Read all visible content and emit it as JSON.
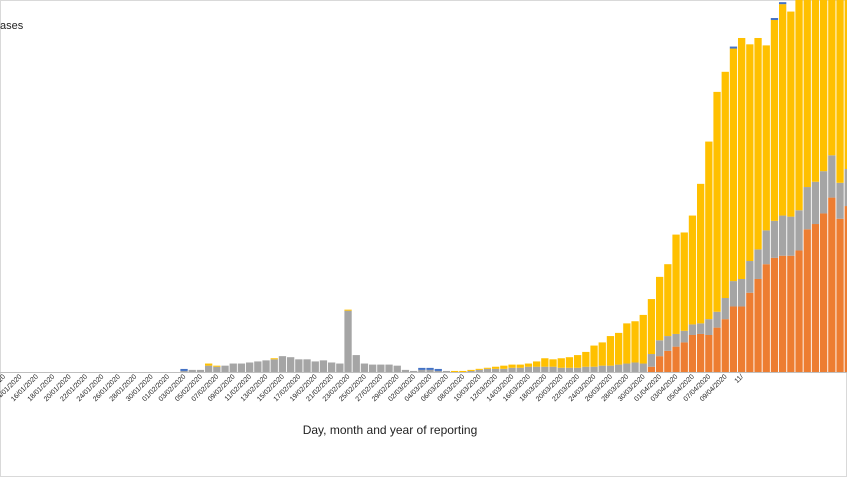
{
  "chart_data": {
    "type": "bar",
    "stacked": true,
    "ylabel": "ases",
    "xlabel": "Day, month and year of reporting",
    "colors": {
      "bottom": "#ED7D31",
      "middle": "#A5A5A5",
      "top": "#FFC000",
      "cap": "#4472C4"
    },
    "tick_labels": [
      "/2020",
      "14/01/2020",
      "16/01/2020",
      "18/01/2020",
      "20/01/2020",
      "22/01/2020",
      "24/01/2020",
      "26/01/2020",
      "28/01/2020",
      "30/01/2020",
      "01/02/2020",
      "03/02/2020",
      "05/02/2020",
      "07/02/2020",
      "09/02/2020",
      "11/02/2020",
      "13/02/2020",
      "15/02/2020",
      "17/02/2020",
      "19/02/2020",
      "21/02/2020",
      "23/02/2020",
      "25/02/2020",
      "27/02/2020",
      "29/02/2020",
      "02/03/2020",
      "04/03/2020",
      "06/03/2020",
      "08/03/2020",
      "10/03/2020",
      "12/03/2020",
      "14/03/2020",
      "16/03/2020",
      "18/03/2020",
      "20/03/2020",
      "22/03/2020",
      "24/03/2020",
      "26/03/2020",
      "28/03/2020",
      "30/03/2020",
      "01/04/2020",
      "03/04/2020",
      "05/04/2020",
      "07/04/2020",
      "09/04/2020",
      "11/"
    ],
    "stack_values": [
      [
        0,
        0,
        0,
        0
      ],
      [
        0,
        0,
        0,
        0
      ],
      [
        0,
        0,
        0,
        0
      ],
      [
        0,
        0,
        0,
        0
      ],
      [
        0,
        0,
        0,
        0
      ],
      [
        0,
        0,
        0,
        0
      ],
      [
        0,
        0,
        0,
        0
      ],
      [
        0,
        0,
        0,
        0
      ],
      [
        0,
        0,
        0,
        0
      ],
      [
        0,
        0,
        0,
        0
      ],
      [
        0,
        0,
        0,
        0
      ],
      [
        0,
        0,
        0,
        0
      ],
      [
        0,
        0,
        0,
        0
      ],
      [
        0,
        0,
        0,
        0
      ],
      [
        0,
        0,
        0,
        0
      ],
      [
        0,
        0,
        0,
        0
      ],
      [
        0,
        0,
        0,
        0
      ],
      [
        0,
        0,
        0,
        0
      ],
      [
        0,
        0,
        0,
        0
      ],
      [
        0,
        0,
        0,
        0
      ],
      [
        0,
        0,
        0,
        0
      ],
      [
        0,
        0,
        0,
        0
      ],
      [
        0,
        1,
        0,
        0.5
      ],
      [
        0,
        2,
        0,
        0
      ],
      [
        0,
        2,
        0,
        0
      ],
      [
        0,
        6,
        2,
        0
      ],
      [
        0,
        5,
        1,
        0
      ],
      [
        0,
        6,
        0,
        0
      ],
      [
        0,
        8,
        0,
        0
      ],
      [
        0,
        8,
        0,
        0
      ],
      [
        0,
        9,
        0,
        0
      ],
      [
        0,
        10,
        0,
        0
      ],
      [
        0,
        11,
        0,
        0
      ],
      [
        0,
        12,
        1,
        0
      ],
      [
        0,
        15,
        0,
        0
      ],
      [
        0,
        14,
        0,
        0
      ],
      [
        0,
        12,
        0,
        0
      ],
      [
        0,
        12,
        0,
        0
      ],
      [
        0,
        10,
        0,
        0
      ],
      [
        0,
        11,
        0,
        0
      ],
      [
        0,
        9,
        0,
        0
      ],
      [
        0,
        8,
        0,
        0
      ],
      [
        0,
        58,
        1,
        0
      ],
      [
        0,
        16,
        0,
        0
      ],
      [
        0,
        8,
        0,
        0
      ],
      [
        0,
        7,
        0,
        0
      ],
      [
        0,
        7,
        0,
        0
      ],
      [
        0,
        7,
        0,
        0
      ],
      [
        0,
        6,
        0,
        0
      ],
      [
        0,
        2,
        0,
        0
      ],
      [
        0,
        1,
        0,
        0
      ],
      [
        0,
        2,
        0,
        0.5
      ],
      [
        0,
        2,
        0,
        0.5
      ],
      [
        0,
        1,
        0,
        0.5
      ],
      [
        0,
        1,
        0,
        0
      ],
      [
        0,
        0,
        1,
        0
      ],
      [
        0,
        0,
        1,
        0
      ],
      [
        0,
        1,
        1,
        0
      ],
      [
        0,
        2,
        1,
        0
      ],
      [
        0,
        3,
        1,
        0
      ],
      [
        0,
        3,
        2,
        0
      ],
      [
        0,
        3,
        3,
        0
      ],
      [
        0,
        4,
        3,
        0
      ],
      [
        0,
        4,
        3,
        0
      ],
      [
        0,
        5,
        3,
        0
      ],
      [
        0,
        5,
        5,
        0
      ],
      [
        0,
        5,
        8,
        0
      ],
      [
        0,
        5,
        7,
        0
      ],
      [
        0,
        4,
        9,
        0
      ],
      [
        0,
        4,
        10,
        0
      ],
      [
        0,
        4,
        12,
        0
      ],
      [
        0,
        5,
        14,
        0
      ],
      [
        0,
        5,
        20,
        0
      ],
      [
        0,
        6,
        22,
        0
      ],
      [
        0,
        6,
        28,
        0
      ],
      [
        0,
        7,
        30,
        0
      ],
      [
        0,
        8,
        38,
        0
      ],
      [
        0,
        9,
        39,
        0
      ],
      [
        0,
        8,
        46,
        0
      ],
      [
        5,
        12,
        52,
        0
      ],
      [
        15,
        15,
        60,
        0
      ],
      [
        20,
        14,
        68,
        0
      ],
      [
        24,
        12,
        94,
        0
      ],
      [
        28,
        11,
        93,
        0
      ],
      [
        35,
        10,
        103,
        0
      ],
      [
        36,
        10,
        132,
        0
      ],
      [
        35,
        15,
        168,
        0
      ],
      [
        42,
        15,
        208,
        0
      ],
      [
        50,
        20,
        214,
        0
      ],
      [
        62,
        24,
        220,
        1
      ],
      [
        62,
        26,
        228,
        0
      ],
      [
        75,
        30,
        205,
        0
      ],
      [
        88,
        28,
        200,
        0
      ],
      [
        102,
        32,
        175,
        0
      ],
      [
        108,
        35,
        190,
        1
      ],
      [
        110,
        38,
        200,
        1
      ],
      [
        110,
        37,
        194,
        0
      ],
      [
        115,
        38,
        240,
        0
      ],
      [
        135,
        40,
        220,
        0
      ],
      [
        140,
        40,
        225,
        0
      ],
      [
        150,
        40,
        240,
        0
      ],
      [
        165,
        40,
        260,
        0
      ],
      [
        145,
        34,
        236,
        0
      ],
      [
        157,
        35,
        218,
        0
      ],
      [
        160,
        40,
        200,
        0
      ],
      [
        150,
        40,
        120,
        0
      ]
    ]
  }
}
